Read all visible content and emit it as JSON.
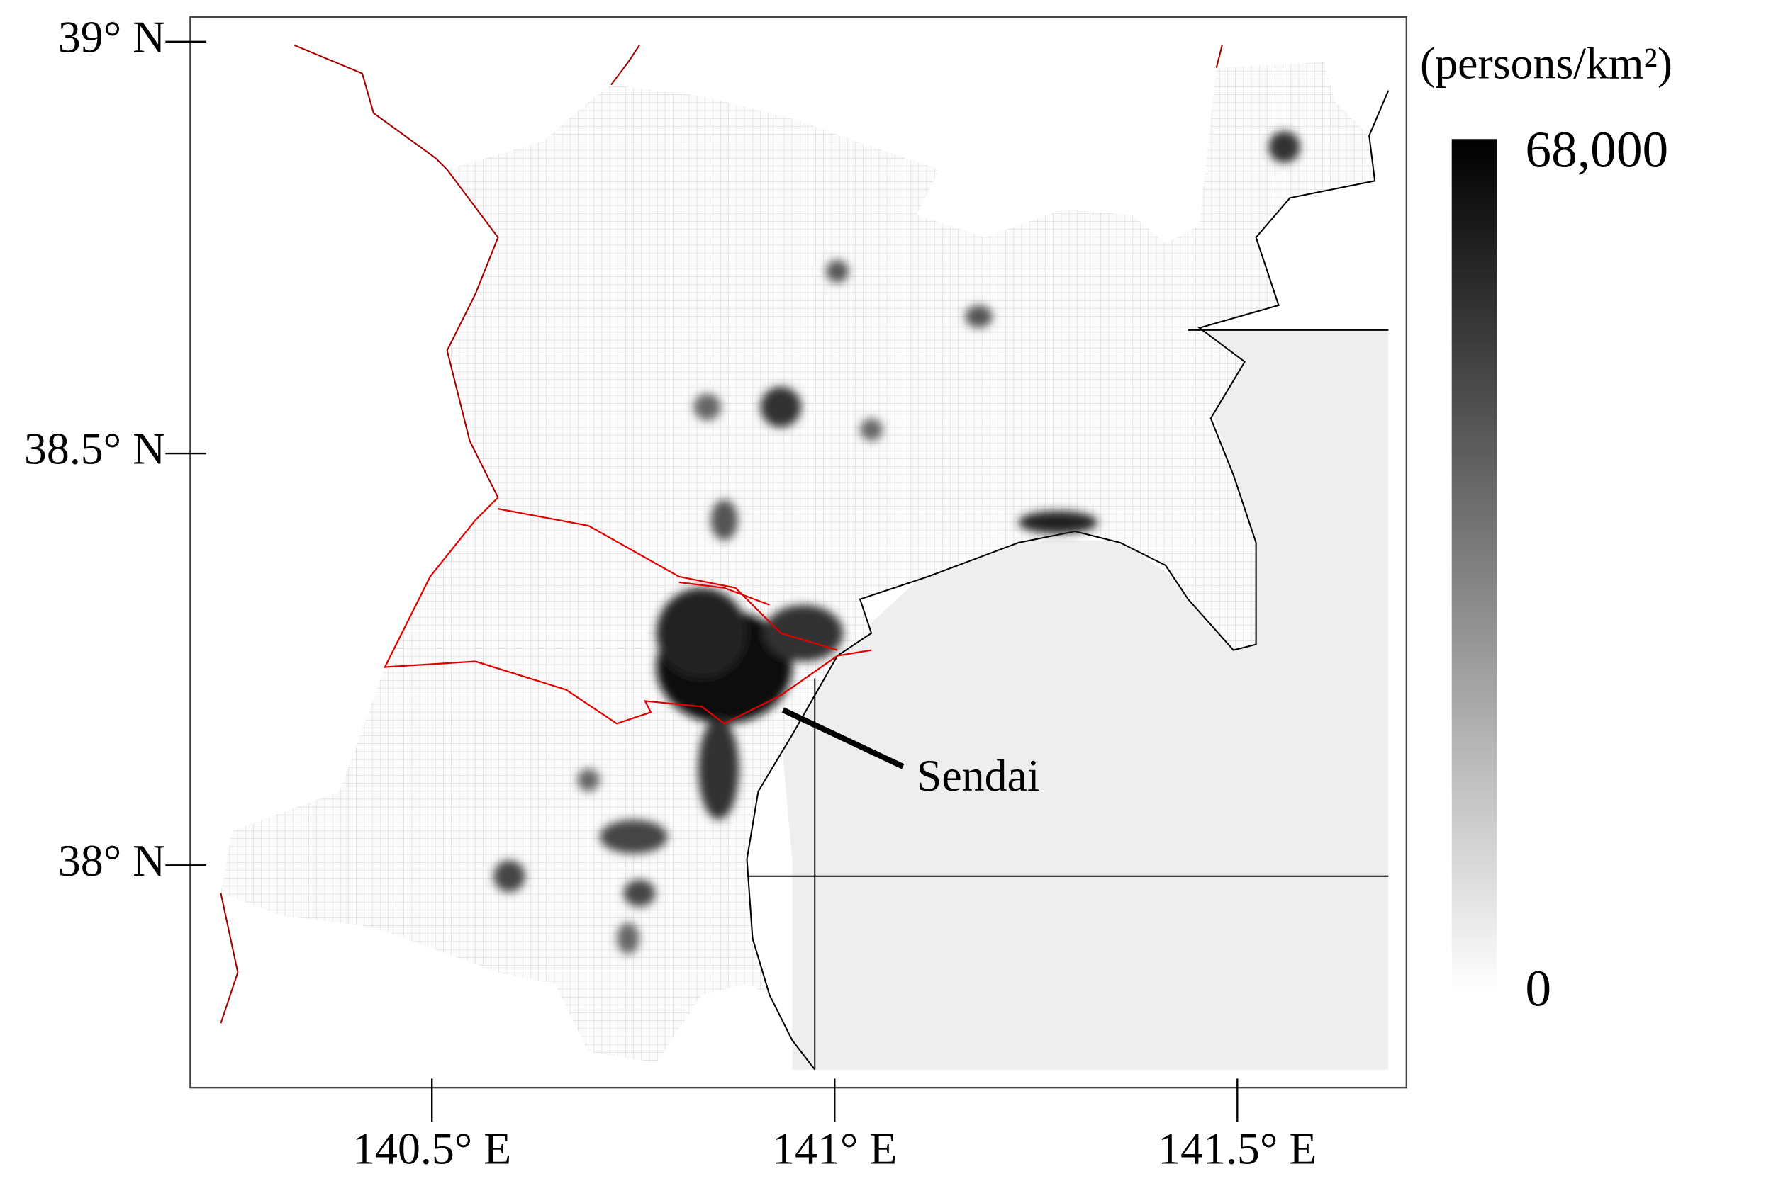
{
  "chart_data": {
    "type": "map",
    "xlim": [
      140.2,
      141.71
    ],
    "ylim": [
      37.73,
      39.03
    ],
    "xticks": [
      {
        "value": 140.5,
        "label": "140.5° E"
      },
      {
        "value": 141,
        "label": "141° E"
      },
      {
        "value": 141.5,
        "label": "141.5° E"
      }
    ],
    "yticks": [
      {
        "value": 38,
        "label": "38° N"
      },
      {
        "value": 38.5,
        "label": "38.5° N"
      },
      {
        "value": 39,
        "label": "39° N"
      }
    ],
    "colorbar": {
      "title": "(persons/km²)",
      "range": [
        0,
        68000
      ],
      "ticks": [
        {
          "value": 0,
          "label": "0"
        },
        {
          "value": 68000,
          "label": "68,000"
        }
      ],
      "colors": [
        "#ffffff",
        "#000000"
      ]
    },
    "annotation": "Sendai"
  }
}
